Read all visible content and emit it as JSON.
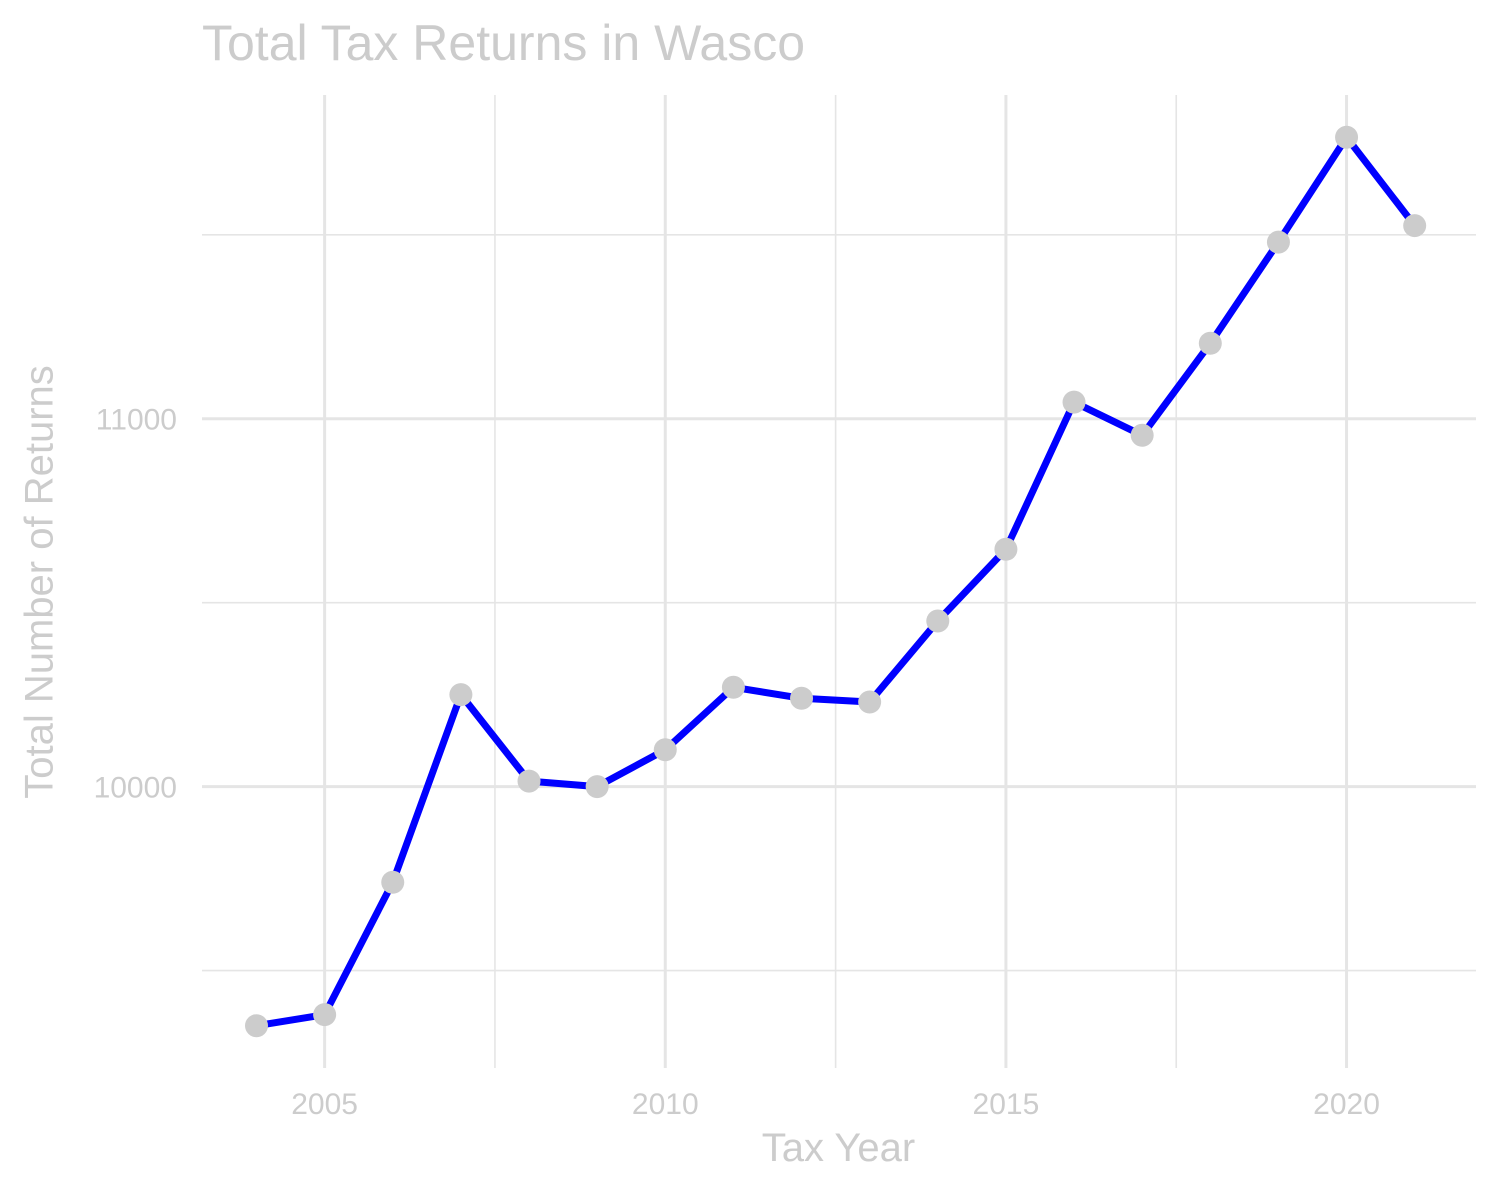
{
  "chart_data": {
    "type": "line",
    "title": "Total Tax Returns in Wasco",
    "xlabel": "Tax Year",
    "ylabel": "Total Number of Returns",
    "x": [
      2004,
      2005,
      2006,
      2007,
      2008,
      2009,
      2010,
      2011,
      2012,
      2013,
      2014,
      2015,
      2016,
      2017,
      2018,
      2019,
      2020,
      2021
    ],
    "series": [
      {
        "values": [
          9350,
          9380,
          9740,
          10250,
          10015,
          10000,
          10100,
          10270,
          10240,
          10230,
          10450,
          10645,
          11045,
          10955,
          11205,
          11480,
          11765,
          11525
        ]
      }
    ],
    "xticks": [
      2005,
      2010,
      2015,
      2020
    ],
    "xtick_labels": [
      "2005",
      "2010",
      "2015",
      "2020"
    ],
    "yticks": [
      10000,
      11000
    ],
    "ytick_labels": [
      "10000",
      "11000"
    ],
    "xlim": [
      2003.2,
      2021.9
    ],
    "ylim": [
      9235,
      11880
    ],
    "grid": true,
    "legend": "none",
    "colors": {
      "line": "#0000ff",
      "point": "#cccccc",
      "grid": "#e5e5e5",
      "text": "#cccccc"
    }
  }
}
